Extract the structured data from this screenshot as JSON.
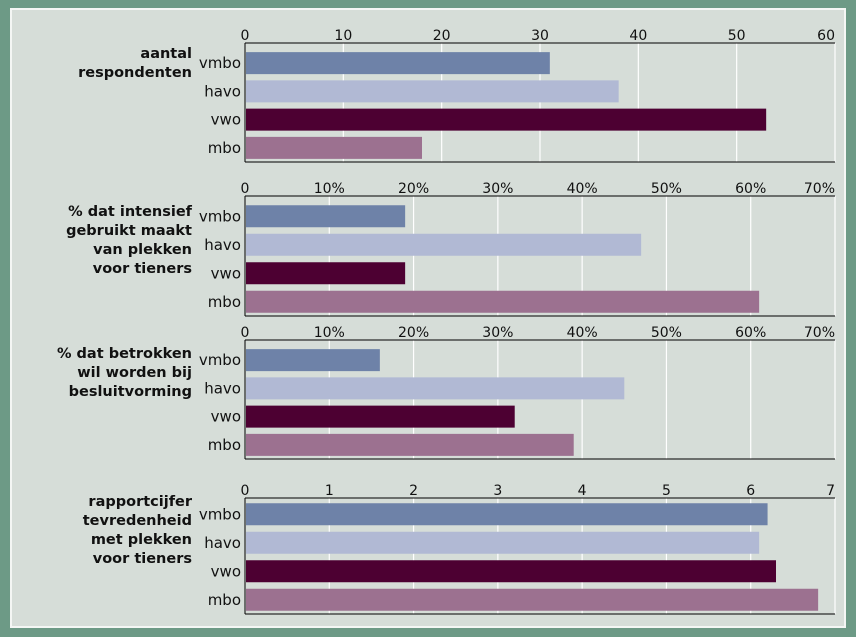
{
  "chart_data": [
    {
      "type": "bar",
      "orientation": "horizontal",
      "title_lines": [
        "aantal",
        "respondenten"
      ],
      "categories": [
        "vmbo",
        "havo",
        "vwo",
        "mbo"
      ],
      "values": [
        31,
        38,
        53,
        18
      ],
      "xlim": [
        0,
        60
      ],
      "ticks": [
        "0",
        "10",
        "20",
        "30",
        "40",
        "50",
        "60"
      ],
      "colors": [
        "#6e82a8",
        "#b1b9d4",
        "#4d0032",
        "#9c7190"
      ],
      "grid": true
    },
    {
      "type": "bar",
      "orientation": "horizontal",
      "title_lines": [
        "% dat intensief",
        "gebruikt maakt",
        "van plekken",
        "voor tieners"
      ],
      "categories": [
        "vmbo",
        "havo",
        "vwo",
        "mbo"
      ],
      "values": [
        19,
        47,
        19,
        61
      ],
      "xlim": [
        0,
        70
      ],
      "ticks": [
        "0",
        "10%",
        "20%",
        "30%",
        "40%",
        "50%",
        "60%",
        "70%"
      ],
      "colors": [
        "#6e82a8",
        "#b1b9d4",
        "#4d0032",
        "#9c7190"
      ],
      "grid": true
    },
    {
      "type": "bar",
      "orientation": "horizontal",
      "title_lines": [
        "% dat betrokken",
        "wil worden bij",
        "besluitvorming"
      ],
      "categories": [
        "vmbo",
        "havo",
        "vwo",
        "mbo"
      ],
      "values": [
        16,
        45,
        32,
        39
      ],
      "xlim": [
        0,
        70
      ],
      "ticks": [
        "0",
        "10%",
        "20%",
        "30%",
        "40%",
        "50%",
        "60%",
        "70%"
      ],
      "colors": [
        "#6e82a8",
        "#b1b9d4",
        "#4d0032",
        "#9c7190"
      ],
      "grid": true
    },
    {
      "type": "bar",
      "orientation": "horizontal",
      "title_lines": [
        "rapportcijfer",
        "tevredenheid",
        "met plekken",
        "voor tieners"
      ],
      "categories": [
        "vmbo",
        "havo",
        "vwo",
        "mbo"
      ],
      "values": [
        6.2,
        6.1,
        6.3,
        6.8
      ],
      "xlim": [
        0,
        7
      ],
      "ticks": [
        "0",
        "1",
        "2",
        "3",
        "4",
        "5",
        "6",
        "7"
      ],
      "colors": [
        "#6e82a8",
        "#b1b9d4",
        "#4d0032",
        "#9c7190"
      ],
      "grid": true
    }
  ]
}
